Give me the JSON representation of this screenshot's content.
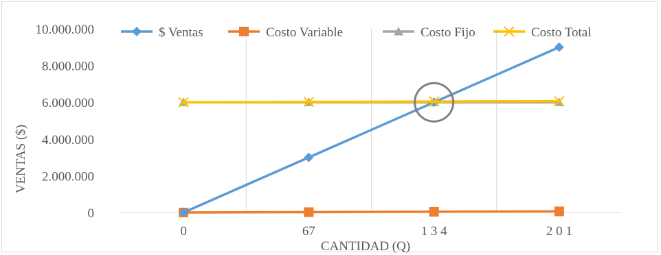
{
  "chart_data": {
    "type": "line",
    "categories": [
      "0",
      "67",
      "1 3 4",
      "2 0 1"
    ],
    "x_values": [
      0,
      67,
      134,
      201
    ],
    "ylim": [
      0,
      10000000
    ],
    "y_ticks": [
      {
        "value": 0,
        "label": "0"
      },
      {
        "value": 2000000,
        "label": "2.000.000"
      },
      {
        "value": 4000000,
        "label": "4.000.000"
      },
      {
        "value": 6000000,
        "label": "6.000.000"
      },
      {
        "value": 8000000,
        "label": "8.000.000"
      },
      {
        "value": 10000000,
        "label": "10.000.000"
      }
    ],
    "xlabel": "CANTIDAD (Q)",
    "ylabel": "VENTAS ($)",
    "grid": "vertical",
    "legend_position": "top",
    "series": [
      {
        "name": "$ Ventas",
        "values": [
          0,
          3000000,
          6000000,
          9000000
        ],
        "color": "#5b9bd5",
        "marker": "diamond"
      },
      {
        "name": "Costo Variable",
        "values": [
          0,
          20000,
          40000,
          60000
        ],
        "color": "#ed7d31",
        "marker": "square"
      },
      {
        "name": "Costo Fijo",
        "values": [
          6000000,
          6000000,
          6000000,
          6000000
        ],
        "color": "#a5a5a5",
        "marker": "triangle"
      },
      {
        "name": "Costo Total",
        "values": [
          6000000,
          6020000,
          6040000,
          6060000
        ],
        "color": "#ffc000",
        "marker": "x"
      }
    ],
    "annotation": {
      "type": "circle",
      "x_index": 2,
      "y_value": 6000000,
      "color": "#808080"
    }
  }
}
